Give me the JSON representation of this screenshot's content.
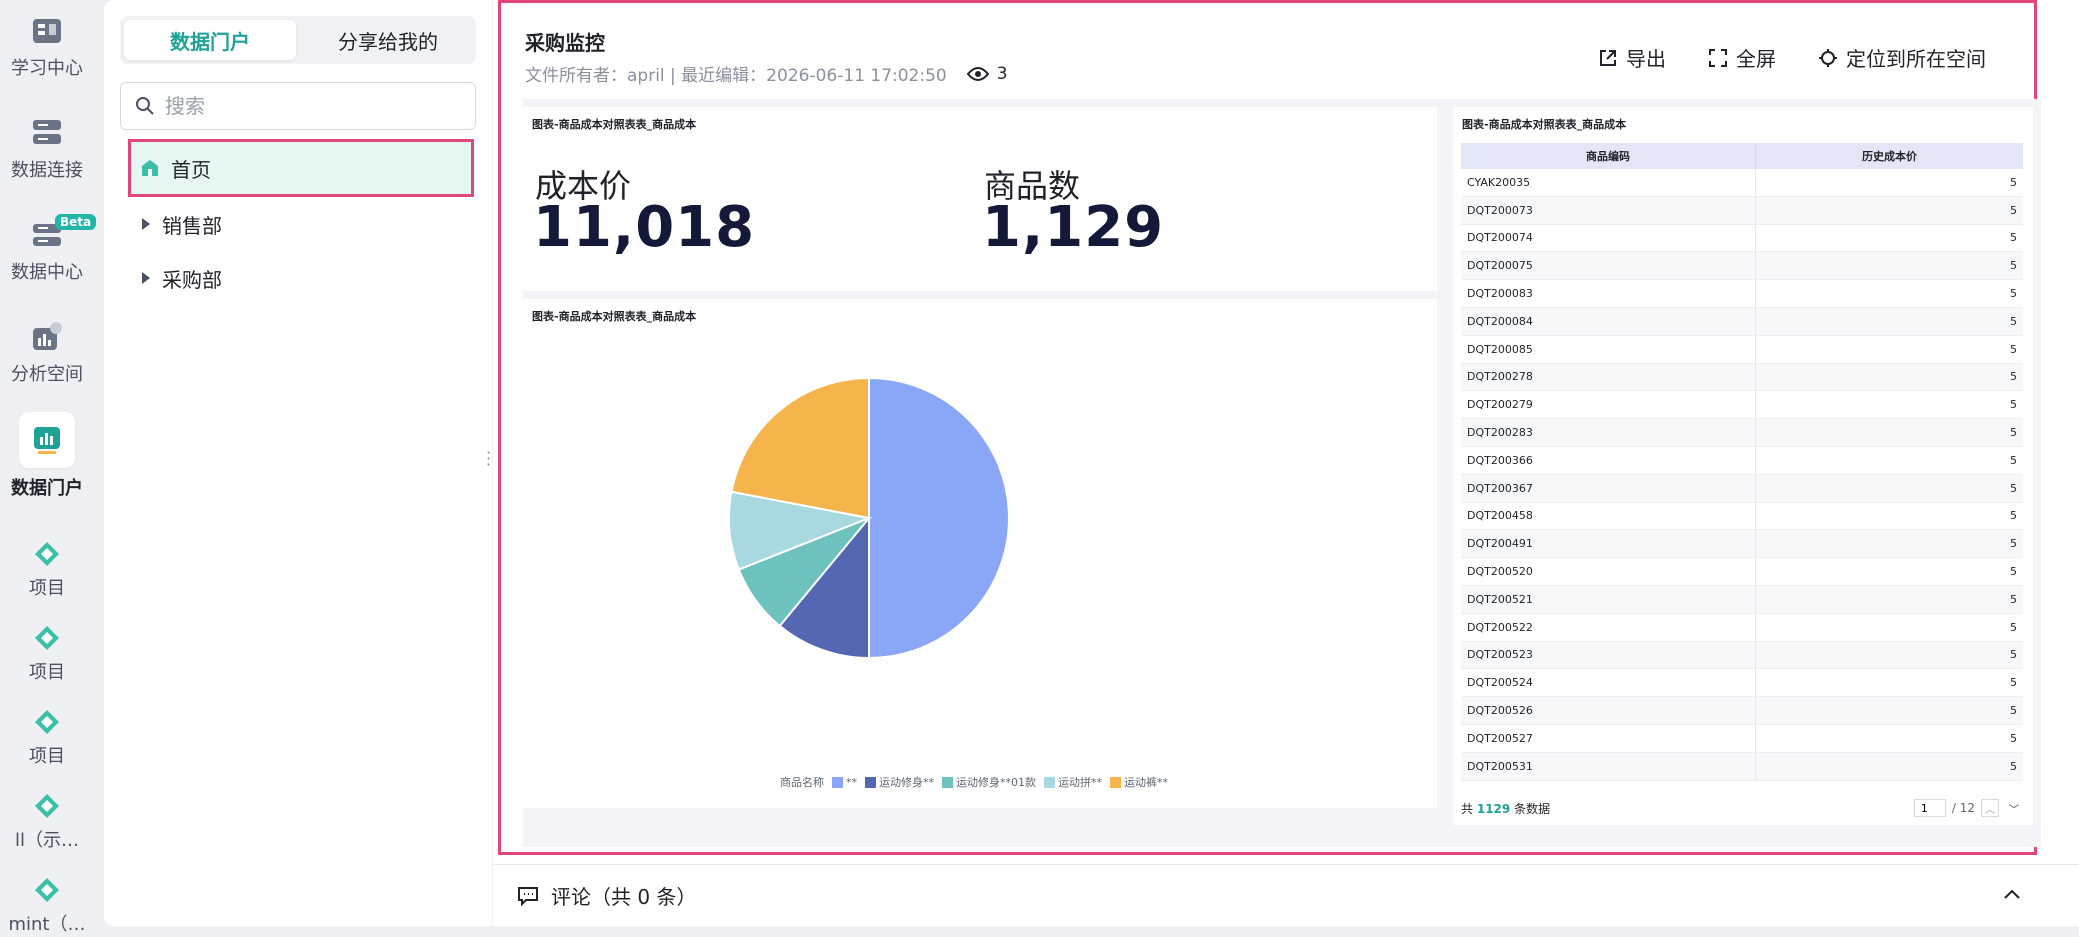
{
  "rail": {
    "items": [
      {
        "label": "学习中心",
        "icon": "book-icon"
      },
      {
        "label": "数据连接",
        "icon": "database-icon"
      },
      {
        "label": "数据中心",
        "icon": "server-icon",
        "badge": "Beta"
      },
      {
        "label": "分析空间",
        "icon": "analysis-icon"
      },
      {
        "label": "数据门户",
        "icon": "portal-icon"
      },
      {
        "label": "项目",
        "icon": "diamond-icon"
      },
      {
        "label": "项目",
        "icon": "diamond-icon"
      },
      {
        "label": "项目",
        "icon": "diamond-icon"
      },
      {
        "label": "ll（示…",
        "icon": "diamond-icon"
      },
      {
        "label": "mint（…",
        "icon": "diamond-icon"
      }
    ]
  },
  "nav": {
    "tab_active": "数据门户",
    "tab_inactive": "分享给我的",
    "search_placeholder": "搜索",
    "tree": [
      {
        "label": "首页"
      },
      {
        "label": "销售部"
      },
      {
        "label": "采购部"
      }
    ]
  },
  "header": {
    "title": "采购监控",
    "meta": "文件所有者：april | 最近编辑：2026-06-11 17:02:50",
    "views": "3",
    "actions": {
      "export": "导出",
      "fullscreen": "全屏",
      "locate": "定位到所在空间"
    }
  },
  "kpi_card": {
    "title": "图表-商品成本对照表表_商品成本",
    "items": [
      {
        "label": "成本价",
        "value": "11,018"
      },
      {
        "label": "商品数",
        "value": "1,129"
      }
    ]
  },
  "pie_card": {
    "title": "图表-商品成本对照表表_商品成本",
    "legend_title": "商品名称"
  },
  "chart_data": {
    "type": "pie",
    "title": "图表-商品成本对照表表_商品成本",
    "legend_title": "商品名称",
    "slices": [
      {
        "label": "**",
        "value": 50,
        "color": "#8aa6f7"
      },
      {
        "label": "运动修身**",
        "value": 11,
        "color": "#5566b3"
      },
      {
        "label": "运动修身**01款",
        "value": 8,
        "color": "#6dc2bd"
      },
      {
        "label": "运动拼**",
        "value": 9,
        "color": "#a8d8e0"
      },
      {
        "label": "运动裤**",
        "value": 22,
        "color": "#f6b44c"
      }
    ]
  },
  "table_card": {
    "title": "图表-商品成本对照表表_商品成本",
    "columns": [
      "商品编码",
      "历史成本价"
    ],
    "rows": [
      [
        "CYAK20035",
        "5"
      ],
      [
        "DQT200073",
        "5"
      ],
      [
        "DQT200074",
        "5"
      ],
      [
        "DQT200075",
        "5"
      ],
      [
        "DQT200083",
        "5"
      ],
      [
        "DQT200084",
        "5"
      ],
      [
        "DQT200085",
        "5"
      ],
      [
        "DQT200278",
        "5"
      ],
      [
        "DQT200279",
        "5"
      ],
      [
        "DQT200283",
        "5"
      ],
      [
        "DQT200366",
        "5"
      ],
      [
        "DQT200367",
        "5"
      ],
      [
        "DQT200458",
        "5"
      ],
      [
        "DQT200491",
        "5"
      ],
      [
        "DQT200520",
        "5"
      ],
      [
        "DQT200521",
        "5"
      ],
      [
        "DQT200522",
        "5"
      ],
      [
        "DQT200523",
        "5"
      ],
      [
        "DQT200524",
        "5"
      ],
      [
        "DQT200526",
        "5"
      ],
      [
        "DQT200527",
        "5"
      ],
      [
        "DQT200531",
        "5"
      ]
    ],
    "footer_prefix": "共",
    "footer_count": "1129",
    "footer_suffix": "条数据",
    "page_current": "1",
    "page_total": "/ 12"
  },
  "comments": {
    "label": "评论（共 0 条）"
  },
  "colors": {
    "accent": "#1fa396",
    "highlight": "#e0457b"
  }
}
